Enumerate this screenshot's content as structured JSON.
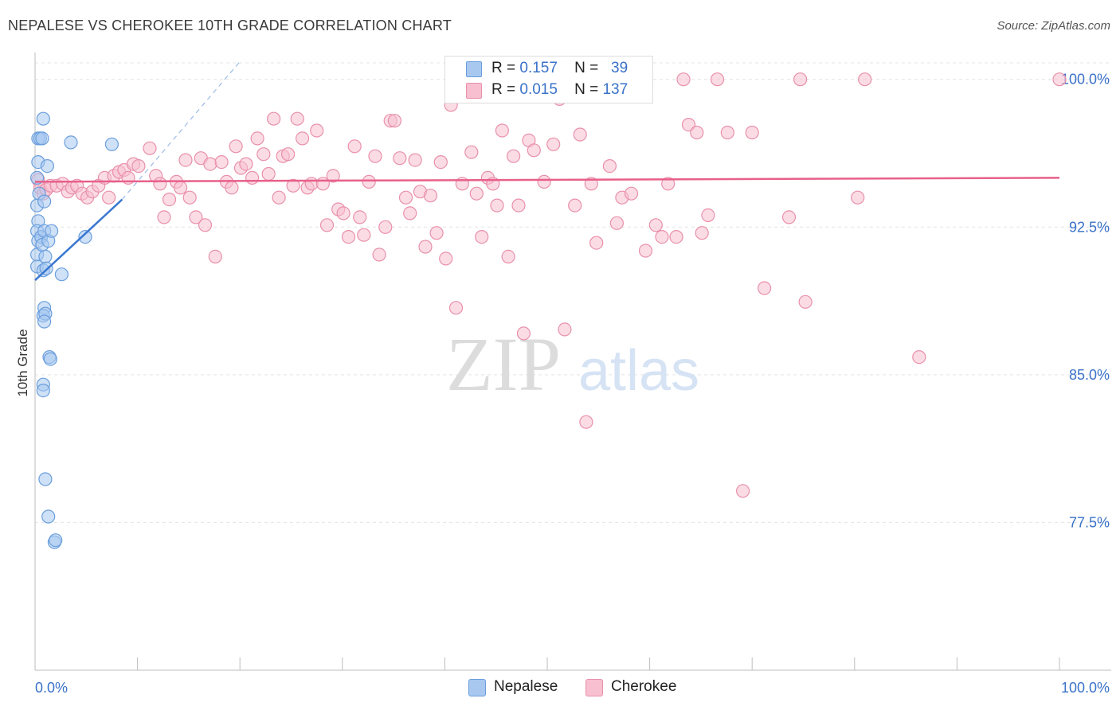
{
  "title": "NEPALESE VS CHEROKEE 10TH GRADE CORRELATION CHART",
  "source": "Source: ZipAtlas.com",
  "watermark": {
    "zip": "ZIP",
    "atlas": "atlas"
  },
  "legend": {
    "rows": [
      {
        "r_label": "R =",
        "r_value": "0.157",
        "n_label": "N =",
        "n_value": "39"
      },
      {
        "r_label": "R =",
        "r_value": "0.015",
        "n_label": "N =",
        "n_value": "137"
      }
    ]
  },
  "bottom_legend": [
    "Nepalese",
    "Cherokee"
  ],
  "colors": {
    "nepalese_fill": "#a8c8f0",
    "nepalese_stroke": "#6a9edc",
    "nepalese_line": "#3a78d0",
    "cherokee_fill": "#f7bfd0",
    "cherokee_stroke": "#e890aa",
    "cherokee_line": "#e8608a",
    "tick_label": "#3a72c8"
  },
  "chart_data": {
    "type": "scatter",
    "title": "NEPALESE VS CHEROKEE 10TH GRADE CORRELATION CHART",
    "xlabel": "",
    "ylabel": "10th Grade",
    "xlim": [
      0,
      100
    ],
    "ylim": [
      70.0,
      101.2
    ],
    "x_tick_labels": [
      "0.0%",
      "100.0%"
    ],
    "y_ticks": [
      100.0,
      92.5,
      85.0,
      77.5
    ],
    "y_tick_labels": [
      "100.0%",
      "92.5%",
      "85.0%",
      "77.5%"
    ],
    "grid": true,
    "series": [
      {
        "name": "Nepalese",
        "r": 0.157,
        "n": 39,
        "trend": {
          "x": [
            0,
            8.5
          ],
          "y": [
            89.8,
            93.9
          ]
        },
        "trend_ext": {
          "x": [
            8.5,
            20
          ],
          "y": [
            93.9,
            100.9
          ]
        },
        "points": [
          [
            0.3,
            97.0
          ],
          [
            0.3,
            95.8
          ],
          [
            0.2,
            95.0
          ],
          [
            0.4,
            94.2
          ],
          [
            0.2,
            93.6
          ],
          [
            0.3,
            92.8
          ],
          [
            0.2,
            92.3
          ],
          [
            0.3,
            91.8
          ],
          [
            0.2,
            91.1
          ],
          [
            0.2,
            90.5
          ],
          [
            0.5,
            97.0
          ],
          [
            0.8,
            98.0
          ],
          [
            0.7,
            97.0
          ],
          [
            1.2,
            95.6
          ],
          [
            0.9,
            93.8
          ],
          [
            0.6,
            92.0
          ],
          [
            0.7,
            91.6
          ],
          [
            0.9,
            92.3
          ],
          [
            1.3,
            91.8
          ],
          [
            1.6,
            92.3
          ],
          [
            1.0,
            91.0
          ],
          [
            0.8,
            90.3
          ],
          [
            1.1,
            90.4
          ],
          [
            2.6,
            90.1
          ],
          [
            0.9,
            88.4
          ],
          [
            0.8,
            88.0
          ],
          [
            1.0,
            88.1
          ],
          [
            0.9,
            87.7
          ],
          [
            1.4,
            85.9
          ],
          [
            1.5,
            85.8
          ],
          [
            0.8,
            84.5
          ],
          [
            0.8,
            84.2
          ],
          [
            1.0,
            79.7
          ],
          [
            1.3,
            77.8
          ],
          [
            1.9,
            76.5
          ],
          [
            2.0,
            76.6
          ],
          [
            3.5,
            96.8
          ],
          [
            4.9,
            92.0
          ],
          [
            7.5,
            96.7
          ]
        ]
      },
      {
        "name": "Cherokee",
        "r": 0.015,
        "n": 137,
        "trend": {
          "x": [
            0,
            100
          ],
          "y": [
            94.8,
            95.0
          ]
        },
        "points": [
          [
            0.3,
            94.9
          ],
          [
            0.5,
            94.5
          ],
          [
            0.8,
            94.2
          ],
          [
            1.1,
            94.4
          ],
          [
            1.5,
            94.6
          ],
          [
            2.1,
            94.6
          ],
          [
            2.7,
            94.7
          ],
          [
            3.2,
            94.3
          ],
          [
            3.6,
            94.5
          ],
          [
            4.1,
            94.6
          ],
          [
            4.6,
            94.2
          ],
          [
            5.1,
            94.0
          ],
          [
            5.6,
            94.3
          ],
          [
            6.2,
            94.6
          ],
          [
            6.8,
            95.0
          ],
          [
            7.2,
            94.0
          ],
          [
            7.7,
            95.1
          ],
          [
            8.2,
            95.3
          ],
          [
            8.7,
            95.4
          ],
          [
            9.1,
            95.0
          ],
          [
            9.6,
            95.7
          ],
          [
            10.1,
            95.6
          ],
          [
            11.2,
            96.5
          ],
          [
            11.8,
            95.1
          ],
          [
            12.2,
            94.7
          ],
          [
            12.6,
            93.0
          ],
          [
            13.1,
            93.9
          ],
          [
            13.8,
            94.8
          ],
          [
            14.2,
            94.5
          ],
          [
            14.7,
            95.9
          ],
          [
            15.1,
            94.0
          ],
          [
            15.7,
            93.0
          ],
          [
            16.2,
            96.0
          ],
          [
            16.6,
            92.6
          ],
          [
            17.1,
            95.7
          ],
          [
            17.6,
            91.0
          ],
          [
            18.2,
            95.8
          ],
          [
            18.7,
            94.8
          ],
          [
            19.2,
            94.5
          ],
          [
            19.6,
            96.6
          ],
          [
            20.1,
            95.5
          ],
          [
            20.6,
            95.7
          ],
          [
            21.2,
            95.0
          ],
          [
            21.7,
            97.0
          ],
          [
            22.3,
            96.2
          ],
          [
            22.8,
            95.2
          ],
          [
            23.3,
            98.0
          ],
          [
            23.8,
            94.0
          ],
          [
            24.2,
            96.1
          ],
          [
            24.7,
            96.2
          ],
          [
            25.2,
            94.6
          ],
          [
            25.6,
            98.0
          ],
          [
            26.1,
            97.0
          ],
          [
            26.6,
            94.5
          ],
          [
            27.0,
            94.7
          ],
          [
            27.5,
            97.4
          ],
          [
            28.1,
            94.7
          ],
          [
            28.5,
            92.6
          ],
          [
            29.1,
            95.1
          ],
          [
            29.6,
            93.4
          ],
          [
            30.1,
            93.2
          ],
          [
            30.6,
            92.0
          ],
          [
            31.2,
            96.6
          ],
          [
            31.7,
            93.0
          ],
          [
            32.1,
            92.1
          ],
          [
            32.6,
            94.8
          ],
          [
            33.2,
            96.1
          ],
          [
            33.6,
            91.1
          ],
          [
            34.2,
            92.5
          ],
          [
            34.7,
            97.9
          ],
          [
            35.1,
            97.9
          ],
          [
            35.6,
            96.0
          ],
          [
            36.2,
            94.0
          ],
          [
            36.6,
            93.2
          ],
          [
            37.1,
            95.9
          ],
          [
            37.6,
            94.3
          ],
          [
            38.1,
            91.5
          ],
          [
            38.6,
            94.1
          ],
          [
            39.2,
            92.2
          ],
          [
            39.6,
            95.8
          ],
          [
            40.1,
            90.9
          ],
          [
            40.6,
            98.7
          ],
          [
            41.1,
            88.4
          ],
          [
            41.7,
            94.7
          ],
          [
            42.2,
            100.0
          ],
          [
            42.6,
            96.3
          ],
          [
            43.1,
            94.2
          ],
          [
            43.6,
            92.0
          ],
          [
            44.2,
            95.0
          ],
          [
            44.7,
            94.7
          ],
          [
            45.1,
            93.6
          ],
          [
            45.6,
            97.4
          ],
          [
            46.2,
            91.0
          ],
          [
            46.7,
            96.1
          ],
          [
            47.2,
            93.6
          ],
          [
            47.7,
            87.1
          ],
          [
            48.2,
            96.9
          ],
          [
            48.7,
            96.4
          ],
          [
            49.2,
            100.0
          ],
          [
            49.7,
            94.8
          ],
          [
            50.2,
            100.0
          ],
          [
            50.6,
            96.7
          ],
          [
            51.2,
            99.0
          ],
          [
            51.7,
            87.3
          ],
          [
            52.2,
            100.0
          ],
          [
            52.7,
            93.6
          ],
          [
            53.2,
            97.2
          ],
          [
            53.8,
            82.6
          ],
          [
            54.3,
            94.7
          ],
          [
            54.8,
            91.7
          ],
          [
            55.3,
            100.0
          ],
          [
            56.1,
            95.6
          ],
          [
            56.8,
            92.7
          ],
          [
            57.3,
            94.0
          ],
          [
            58.2,
            94.2
          ],
          [
            59.6,
            91.3
          ],
          [
            60.6,
            92.6
          ],
          [
            61.2,
            92.0
          ],
          [
            61.8,
            94.7
          ],
          [
            62.6,
            92.0
          ],
          [
            63.3,
            100.0
          ],
          [
            63.8,
            97.7
          ],
          [
            64.6,
            97.3
          ],
          [
            65.1,
            92.2
          ],
          [
            65.7,
            93.1
          ],
          [
            66.6,
            100.0
          ],
          [
            67.6,
            97.3
          ],
          [
            69.1,
            79.1
          ],
          [
            70.0,
            97.3
          ],
          [
            71.2,
            89.4
          ],
          [
            73.6,
            93.0
          ],
          [
            74.7,
            100.0
          ],
          [
            75.2,
            88.7
          ],
          [
            80.3,
            94.0
          ],
          [
            81.0,
            100.0
          ],
          [
            86.3,
            85.9
          ],
          [
            100.0,
            100.0
          ]
        ]
      }
    ]
  }
}
